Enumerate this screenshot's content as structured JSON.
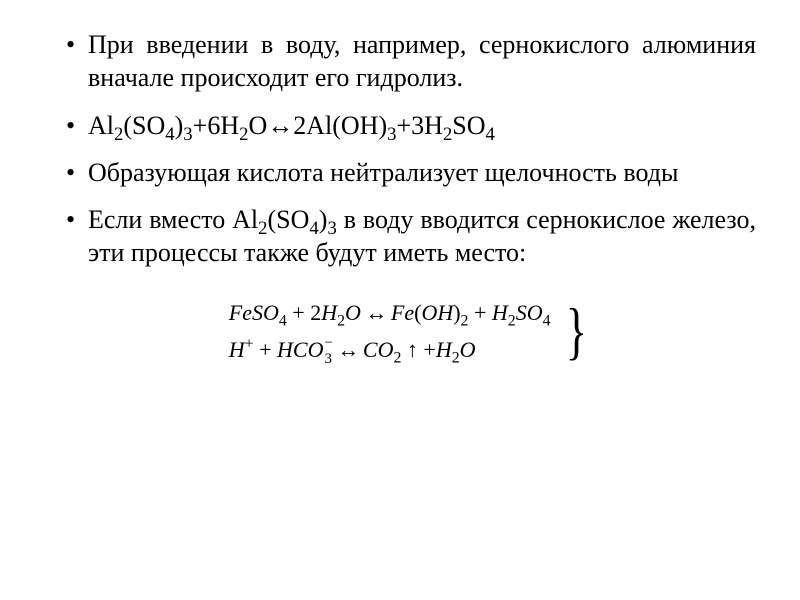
{
  "bullets": {
    "b1": {
      "t1": "При введении в воду, например, сернокислого алюминия вначале происходит его гидролиз."
    },
    "b2": {
      "f_pre": "Al",
      "f_s1": "2",
      "f_t1": "(SO",
      "f_s2": "4",
      "f_t2": ")",
      "f_s3": "3",
      "f_t3": "+6H",
      "f_s4": "2",
      "f_t4": "O↔2Al(OH)",
      "f_s5": "3",
      "f_t5": "+3H",
      "f_s6": "2",
      "f_t6": "SO",
      "f_s7": "4"
    },
    "b3": {
      "t1": "Образующая кислота нейтрализует щелочность воды"
    },
    "b4": {
      "t1": "Если вместо Al",
      "s1": "2",
      "t2": "(SO",
      "s2": "4",
      "t3": ")",
      "s3": "3",
      "t4": "  в воду вводится сернокислое железо, эти процессы также будут иметь место:"
    }
  },
  "equations": {
    "line1": {
      "a": "FeSO",
      "a_s": "4",
      "p1": " + ",
      "b_n": "2",
      "b": "H",
      "b_s": "2",
      "b2": "O",
      "arr": " ↔ ",
      "c": "Fe",
      "c_p": "(",
      "c2": "OH",
      "c_p2": ")",
      "c_s": "2",
      "p2": " + ",
      "d": "H",
      "d_s": "2",
      "d2": "SO",
      "d2_s": "4"
    },
    "line2": {
      "a": "H",
      "a_sup": "+",
      "p1": " + ",
      "b": "HCO",
      "b_sub": "3",
      "b_sup": "−",
      "arr": " ↔ ",
      "c": "CO",
      "c_s": "2",
      "up": " ↑ ",
      "p2": "+",
      "d": "H",
      "d_s": "2",
      "d2": "O"
    },
    "brace": "}"
  },
  "style": {
    "text_color": "#000000",
    "background": "#ffffff",
    "body_fontsize": 26,
    "eq_fontsize": 22,
    "font_family": "Times New Roman"
  }
}
